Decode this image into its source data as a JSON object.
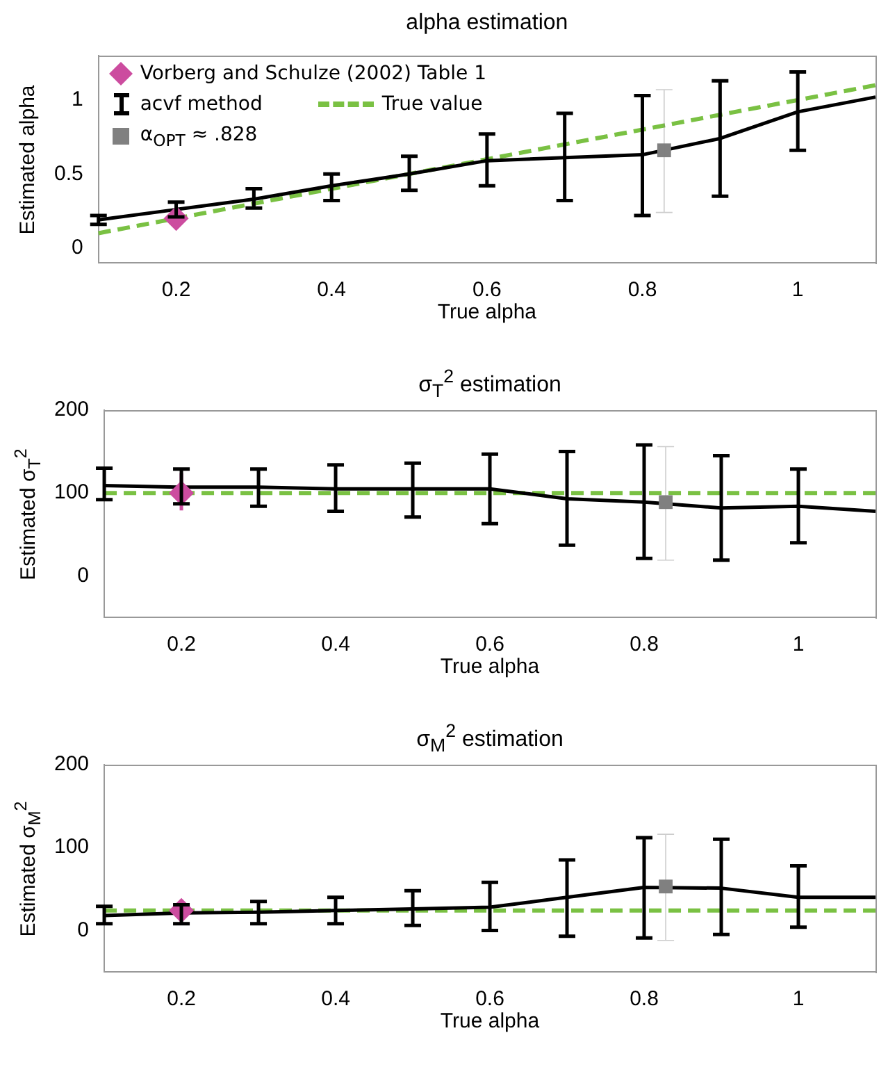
{
  "chart_data": [
    {
      "type": "line",
      "title": "alpha estimation",
      "xlabel": "True alpha",
      "ylabel": "Estimated alpha",
      "xlim": [
        0.1,
        1.1
      ],
      "xticks": [
        0.2,
        0.4,
        0.6,
        0.8,
        1
      ],
      "ylim": [
        -0.1,
        1.3
      ],
      "yticks": [
        0,
        0.5,
        1
      ],
      "grid": false,
      "legend": "top left",
      "series": [
        {
          "name": "Vorberg and Schulze (2002) Table 1",
          "type": "scatter",
          "color": "#cc4c9f",
          "marker": "diamond",
          "x": [
            0.2
          ],
          "values": [
            0.2
          ]
        },
        {
          "name": "acvf method",
          "color": "#000000",
          "marker": "none",
          "x": [
            0.1,
            0.2,
            0.3,
            0.4,
            0.5,
            0.6,
            0.7,
            0.8,
            0.9,
            1.0,
            1.1
          ],
          "values": [
            0.19,
            0.26,
            0.33,
            0.42,
            0.5,
            0.59,
            0.61,
            0.63,
            0.74,
            0.92,
            1.02
          ],
          "errors": [
            [
              0.16,
              0.22
            ],
            [
              0.21,
              0.31
            ],
            [
              0.27,
              0.4
            ],
            [
              0.32,
              0.5
            ],
            [
              0.39,
              0.62
            ],
            [
              0.42,
              0.77
            ],
            [
              0.32,
              0.91
            ],
            [
              0.22,
              1.03
            ],
            [
              0.35,
              1.13
            ],
            [
              0.66,
              1.19
            ],
            null
          ]
        },
        {
          "name": "True value",
          "color": "#7ac143",
          "marker": "none",
          "line_style": "dashed",
          "x": [
            0.1,
            1.1
          ],
          "values": [
            0.1,
            1.1
          ]
        },
        {
          "name": "α$_{OPT}$ ≈ .828",
          "type": "scatter",
          "color": "#808080",
          "marker": "square",
          "x": [
            0.828
          ],
          "values": [
            0.66
          ],
          "errors": [
            [
              0.24,
              1.07
            ]
          ]
        }
      ]
    },
    {
      "type": "line",
      "title": "σ$_{T}$$^{2}$ estimation",
      "xlabel": "True alpha",
      "ylabel": "Estimated σ$_{T}$$^{2}$",
      "xlim": [
        0.1,
        1.1
      ],
      "xticks": [
        0.2,
        0.4,
        0.6,
        0.8,
        1
      ],
      "ylim": [
        -50,
        200
      ],
      "yticks": [
        0,
        100,
        200
      ],
      "grid": false,
      "series": [
        {
          "type": "scatter",
          "color": "#cc4c9f",
          "marker": "diamond",
          "x": [
            0.2
          ],
          "values": [
            100
          ],
          "errors": [
            [
              79,
              124
            ]
          ]
        },
        {
          "color": "#000000",
          "marker": "none",
          "x": [
            0.1,
            0.2,
            0.3,
            0.4,
            0.5,
            0.6,
            0.7,
            0.8,
            0.9,
            1.0,
            1.1
          ],
          "values": [
            109,
            107,
            107,
            105,
            105,
            105,
            93,
            89,
            82,
            84,
            78
          ],
          "errors": [
            [
              92,
              130
            ],
            [
              87,
              129
            ],
            [
              84,
              129
            ],
            [
              78,
              134
            ],
            [
              71,
              136
            ],
            [
              63,
              147
            ],
            [
              37,
              150
            ],
            [
              21,
              158
            ],
            [
              19,
              145
            ],
            [
              40,
              129
            ],
            null
          ]
        },
        {
          "color": "#7ac143",
          "marker": "none",
          "line_style": "dashed",
          "x": [
            0.1,
            1.1
          ],
          "values": [
            100,
            100
          ]
        },
        {
          "type": "scatter",
          "color": "#808080",
          "marker": "square",
          "x": [
            0.828
          ],
          "values": [
            89
          ],
          "errors": [
            [
              19,
              156
            ]
          ]
        }
      ]
    },
    {
      "type": "line",
      "title": "σ$_{M}$$^{2}$ estimation",
      "xlabel": "True alpha",
      "ylabel": "Estimated σ$_{M}$$^{2}$",
      "xlim": [
        0.1,
        1.1
      ],
      "xticks": [
        0.2,
        0.4,
        0.6,
        0.8,
        1
      ],
      "ylim": [
        -50,
        200
      ],
      "yticks": [
        0,
        100,
        200
      ],
      "grid": false,
      "series": [
        {
          "type": "scatter",
          "color": "#cc4c9f",
          "marker": "diamond",
          "x": [
            0.2
          ],
          "values": [
            24
          ],
          "errors": [
            [
              11,
              37
            ]
          ]
        },
        {
          "color": "#000000",
          "marker": "none",
          "x": [
            0.1,
            0.2,
            0.3,
            0.4,
            0.5,
            0.6,
            0.7,
            0.8,
            0.9,
            1.0,
            1.1
          ],
          "values": [
            18,
            21,
            22,
            24,
            26,
            28,
            40,
            52,
            51,
            40,
            40
          ],
          "errors": [
            [
              8,
              29
            ],
            [
              8,
              31
            ],
            [
              8,
              35
            ],
            [
              8,
              40
            ],
            [
              6,
              48
            ],
            [
              0,
              58
            ],
            [
              -7,
              85
            ],
            [
              -9,
              112
            ],
            [
              -5,
              110
            ],
            [
              4,
              78
            ],
            null
          ]
        },
        {
          "color": "#7ac143",
          "marker": "none",
          "line_style": "dashed",
          "x": [
            0.1,
            1.1
          ],
          "values": [
            24,
            24
          ]
        },
        {
          "type": "scatter",
          "color": "#808080",
          "marker": "square",
          "x": [
            0.828
          ],
          "values": [
            53
          ],
          "errors": [
            [
              -12,
              116
            ]
          ]
        }
      ]
    }
  ]
}
